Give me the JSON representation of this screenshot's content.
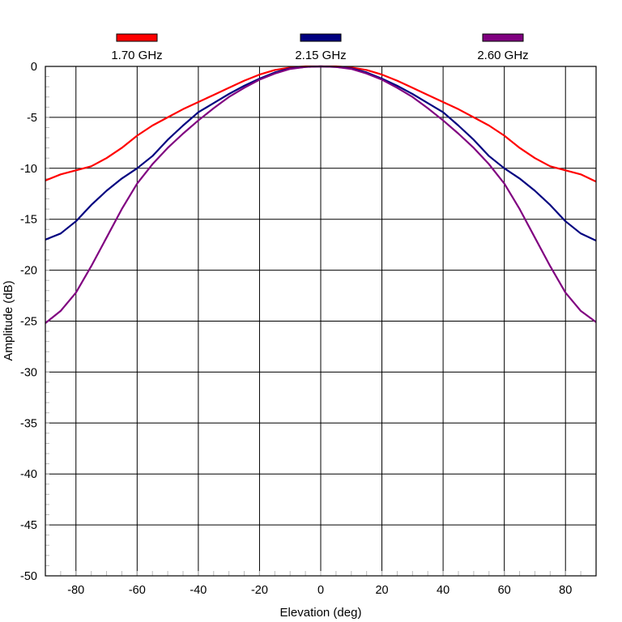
{
  "chart_data": {
    "type": "line",
    "title": "",
    "xlabel": "Elevation (deg)",
    "ylabel": "Amplitude (dB)",
    "xlim": [
      -90,
      90
    ],
    "ylim": [
      -50,
      0
    ],
    "xticks": [
      -80,
      -60,
      -40,
      -20,
      0,
      20,
      40,
      60,
      80
    ],
    "yticks": [
      0,
      -5,
      -10,
      -15,
      -20,
      -25,
      -30,
      -35,
      -40,
      -45,
      -50
    ],
    "grid": true,
    "legend_position": "top",
    "x": [
      -90,
      -85,
      -80,
      -75,
      -70,
      -65,
      -60,
      -55,
      -50,
      -45,
      -40,
      -35,
      -30,
      -25,
      -20,
      -15,
      -10,
      -5,
      0,
      5,
      10,
      15,
      20,
      25,
      30,
      35,
      40,
      45,
      50,
      55,
      60,
      65,
      70,
      75,
      80,
      85,
      90
    ],
    "series": [
      {
        "name": "1.70 GHz",
        "color": "#ff0000",
        "values": [
          -11.2,
          -10.6,
          -10.2,
          -9.8,
          -9.0,
          -8.0,
          -6.8,
          -5.8,
          -5.0,
          -4.2,
          -3.5,
          -2.8,
          -2.1,
          -1.4,
          -0.8,
          -0.35,
          -0.1,
          0.0,
          0.0,
          0.0,
          -0.1,
          -0.35,
          -0.8,
          -1.4,
          -2.1,
          -2.8,
          -3.5,
          -4.2,
          -5.0,
          -5.8,
          -6.8,
          -8.0,
          -9.0,
          -9.8,
          -10.2,
          -10.6,
          -11.3
        ]
      },
      {
        "name": "2.15 GHz",
        "color": "#000080",
        "values": [
          -17.0,
          -16.4,
          -15.2,
          -13.6,
          -12.2,
          -11.0,
          -10.0,
          -8.8,
          -7.2,
          -5.8,
          -4.5,
          -3.6,
          -2.7,
          -1.9,
          -1.2,
          -0.6,
          -0.2,
          -0.05,
          0.0,
          -0.05,
          -0.2,
          -0.6,
          -1.2,
          -1.9,
          -2.7,
          -3.6,
          -4.5,
          -5.8,
          -7.2,
          -8.8,
          -10.0,
          -11.0,
          -12.2,
          -13.6,
          -15.2,
          -16.4,
          -17.1
        ]
      },
      {
        "name": "2.60 GHz",
        "color": "#800080",
        "values": [
          -25.2,
          -24.0,
          -22.2,
          -19.6,
          -16.8,
          -14.0,
          -11.5,
          -9.6,
          -8.0,
          -6.6,
          -5.3,
          -4.1,
          -3.0,
          -2.1,
          -1.3,
          -0.7,
          -0.25,
          -0.05,
          0.0,
          -0.05,
          -0.25,
          -0.7,
          -1.3,
          -2.1,
          -3.0,
          -4.1,
          -5.3,
          -6.6,
          -8.0,
          -9.6,
          -11.5,
          -14.0,
          -16.8,
          -19.6,
          -22.2,
          -24.0,
          -25.1
        ]
      }
    ]
  }
}
